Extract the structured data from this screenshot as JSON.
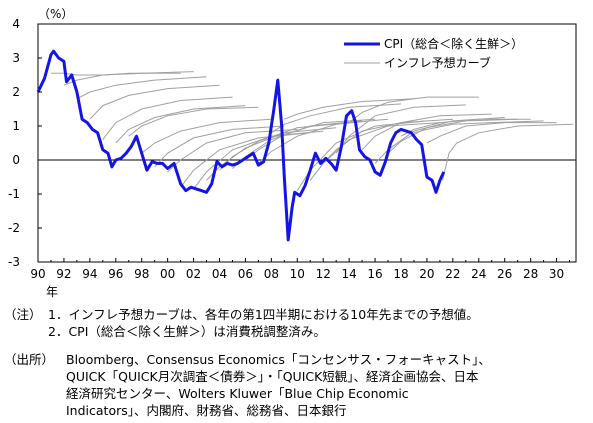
{
  "chart_data": {
    "type": "line",
    "y_unit_label": "（%）",
    "x_unit_label": "年",
    "ylim": [
      -3,
      4
    ],
    "y_ticks": [
      -3,
      -2,
      -1,
      0,
      1,
      2,
      3,
      4
    ],
    "y_tick_labels": [
      "-3",
      "-2",
      "-1",
      "0",
      "1",
      "2",
      "3",
      "4"
    ],
    "xlim": [
      1990,
      2031.5
    ],
    "x_ticks": [
      1990,
      1992,
      1994,
      1996,
      1998,
      2000,
      2002,
      2004,
      2006,
      2008,
      2010,
      2012,
      2014,
      2016,
      2018,
      2020,
      2022,
      2024,
      2026,
      2028,
      2030
    ],
    "x_tick_labels": [
      "90",
      "92",
      "94",
      "96",
      "98",
      "00",
      "02",
      "04",
      "06",
      "08",
      "10",
      "12",
      "14",
      "16",
      "18",
      "20",
      "22",
      "24",
      "26",
      "28",
      "30"
    ],
    "legend_position": "top-right",
    "series": [
      {
        "name": "CPI（総合＜除く生鮮＞）",
        "color": "#1414e6",
        "x": [
          1990.0,
          1990.5,
          1991.0,
          1991.2,
          1991.6,
          1992.0,
          1992.2,
          1992.6,
          1993.0,
          1993.4,
          1993.8,
          1994.2,
          1994.6,
          1995.0,
          1995.4,
          1995.7,
          1996.0,
          1996.4,
          1996.8,
          1997.2,
          1997.6,
          1998.0,
          1998.4,
          1998.8,
          1999.2,
          1999.6,
          2000.0,
          2000.5,
          2001.0,
          2001.4,
          2001.8,
          2002.2,
          2002.6,
          2003.0,
          2003.4,
          2003.8,
          2004.2,
          2004.6,
          2005.0,
          2005.4,
          2005.8,
          2006.2,
          2006.6,
          2007.0,
          2007.4,
          2007.8,
          2008.2,
          2008.5,
          2008.8,
          2009.0,
          2009.3,
          2009.6,
          2009.8,
          2010.2,
          2010.6,
          2011.0,
          2011.4,
          2011.8,
          2012.2,
          2012.6,
          2013.0,
          2013.4,
          2013.8,
          2014.2,
          2014.5,
          2014.8,
          2015.2,
          2015.6,
          2016.0,
          2016.4,
          2016.8,
          2017.2,
          2017.6,
          2018.0,
          2018.4,
          2018.8,
          2019.2,
          2019.6,
          2020.0,
          2020.4,
          2020.7,
          2021.0,
          2021.3
        ],
        "y": [
          2.0,
          2.4,
          3.1,
          3.2,
          3.0,
          2.9,
          2.3,
          2.5,
          2.0,
          1.2,
          1.1,
          0.9,
          0.8,
          0.3,
          0.2,
          -0.2,
          0.0,
          0.05,
          0.2,
          0.4,
          0.7,
          0.2,
          -0.3,
          -0.05,
          -0.1,
          -0.1,
          -0.25,
          -0.1,
          -0.7,
          -0.9,
          -0.8,
          -0.85,
          -0.9,
          -0.95,
          -0.7,
          -0.05,
          -0.2,
          -0.1,
          -0.15,
          -0.1,
          0.0,
          0.1,
          0.2,
          -0.15,
          -0.05,
          0.5,
          1.5,
          2.35,
          1.0,
          -0.5,
          -2.35,
          -1.4,
          -0.95,
          -1.05,
          -0.75,
          -0.3,
          0.2,
          -0.1,
          0.05,
          -0.1,
          -0.3,
          0.4,
          1.3,
          1.45,
          1.1,
          0.3,
          0.1,
          0.0,
          -0.35,
          -0.45,
          -0.05,
          0.5,
          0.8,
          0.9,
          0.85,
          0.8,
          0.6,
          0.45,
          -0.5,
          -0.6,
          -0.95,
          -0.6,
          -0.35
        ]
      },
      {
        "name": "インフレ予想カーブ",
        "color": "#a0a0a0",
        "curves": [
          {
            "x": [
              1991,
              1992,
              1993,
              1995,
              1997,
              1999,
              2001
            ],
            "y": [
              2.55,
              2.55,
              2.5,
              2.5,
              2.55,
              2.55,
              2.55
            ]
          },
          {
            "x": [
              1992,
              1993,
              1995,
              1998,
              2002
            ],
            "y": [
              2.2,
              2.35,
              2.5,
              2.55,
              2.6
            ]
          },
          {
            "x": [
              1993,
              1994,
              1996,
              1999,
              2003
            ],
            "y": [
              1.8,
              2.0,
              2.2,
              2.35,
              2.45
            ]
          },
          {
            "x": [
              1994,
              1995,
              1997,
              2000,
              2004
            ],
            "y": [
              1.2,
              1.6,
              1.9,
              2.1,
              2.2
            ]
          },
          {
            "x": [
              1995,
              1996,
              1998,
              2001,
              2005
            ],
            "y": [
              0.6,
              1.1,
              1.5,
              1.75,
              1.85
            ]
          },
          {
            "x": [
              1996,
              1997,
              1999,
              2002,
              2006
            ],
            "y": [
              0.5,
              0.9,
              1.25,
              1.5,
              1.6
            ]
          },
          {
            "x": [
              1997,
              1998,
              2000,
              2003,
              2007
            ],
            "y": [
              0.7,
              1.0,
              1.3,
              1.5,
              1.55
            ]
          },
          {
            "x": [
              1998,
              1999,
              2001,
              2004,
              2008
            ],
            "y": [
              0.2,
              0.5,
              0.85,
              1.1,
              1.2
            ]
          },
          {
            "x": [
              1999,
              2000,
              2002,
              2005,
              2009
            ],
            "y": [
              -0.2,
              0.2,
              0.65,
              0.9,
              1.0
            ]
          },
          {
            "x": [
              2000,
              2001,
              2003,
              2006,
              2010
            ],
            "y": [
              -0.35,
              0.0,
              0.5,
              0.8,
              0.9
            ]
          },
          {
            "x": [
              2001,
              2002,
              2004,
              2007,
              2011
            ],
            "y": [
              -0.8,
              -0.3,
              0.3,
              0.65,
              0.8
            ]
          },
          {
            "x": [
              2002,
              2003,
              2005,
              2008,
              2012
            ],
            "y": [
              -0.85,
              -0.35,
              0.3,
              0.7,
              0.85
            ]
          },
          {
            "x": [
              2003,
              2004,
              2006,
              2009,
              2013
            ],
            "y": [
              -0.6,
              -0.2,
              0.35,
              0.8,
              0.95
            ]
          },
          {
            "x": [
              2004,
              2005,
              2007,
              2010,
              2014
            ],
            "y": [
              -0.3,
              0.1,
              0.55,
              0.95,
              1.1
            ]
          },
          {
            "x": [
              2005,
              2006,
              2008,
              2011,
              2015
            ],
            "y": [
              -0.25,
              0.1,
              0.6,
              1.0,
              1.15
            ]
          },
          {
            "x": [
              2006,
              2007,
              2009,
              2012,
              2016
            ],
            "y": [
              0.0,
              0.3,
              0.75,
              1.1,
              1.2
            ]
          },
          {
            "x": [
              2007,
              2008,
              2010,
              2013,
              2017
            ],
            "y": [
              -0.1,
              0.25,
              0.7,
              1.05,
              1.2
            ]
          },
          {
            "x": [
              2008,
              2009,
              2011,
              2014,
              2018
            ],
            "y": [
              0.8,
              1.05,
              1.3,
              1.55,
              1.65
            ]
          },
          {
            "x": [
              2009,
              2010,
              2012,
              2015,
              2019
            ],
            "y": [
              1.2,
              1.35,
              1.55,
              1.72,
              1.8
            ]
          },
          {
            "x": [
              2010,
              2011,
              2013,
              2016,
              2020
            ],
            "y": [
              -0.9,
              -0.3,
              0.5,
              1.0,
              1.15
            ]
          },
          {
            "x": [
              2011,
              2012,
              2014,
              2017,
              2021
            ],
            "y": [
              -0.6,
              -0.1,
              0.6,
              1.0,
              1.1
            ]
          },
          {
            "x": [
              2012,
              2013,
              2015,
              2018,
              2022
            ],
            "y": [
              -0.1,
              0.3,
              0.85,
              1.1,
              1.2
            ]
          },
          {
            "x": [
              2013,
              2014,
              2016,
              2019,
              2023
            ],
            "y": [
              0.2,
              0.7,
              1.3,
              1.55,
              1.62
            ]
          },
          {
            "x": [
              2014,
              2015,
              2017,
              2020,
              2024
            ],
            "y": [
              1.1,
              1.4,
              1.7,
              1.85,
              1.85
            ]
          },
          {
            "x": [
              2015,
              2016,
              2018,
              2021,
              2025
            ],
            "y": [
              0.3,
              0.7,
              1.1,
              1.3,
              1.35
            ]
          },
          {
            "x": [
              2016,
              2017,
              2019,
              2022,
              2026
            ],
            "y": [
              -0.1,
              0.3,
              0.85,
              1.15,
              1.25
            ]
          },
          {
            "x": [
              2017,
              2018,
              2020,
              2023,
              2027
            ],
            "y": [
              0.2,
              0.55,
              0.95,
              1.15,
              1.2
            ]
          },
          {
            "x": [
              2018,
              2019,
              2021,
              2024,
              2028
            ],
            "y": [
              0.7,
              0.9,
              1.1,
              1.2,
              1.2
            ]
          },
          {
            "x": [
              2019,
              2020,
              2022,
              2025,
              2029
            ],
            "y": [
              0.8,
              0.9,
              1.05,
              1.1,
              1.15
            ]
          },
          {
            "x": [
              2020,
              2021,
              2023,
              2026,
              2030
            ],
            "y": [
              0.5,
              0.7,
              1.0,
              1.1,
              1.1
            ]
          },
          {
            "x": [
              2021.2,
              2021.7,
              2022.3,
              2024,
              2027,
              2031.3
            ],
            "y": [
              -0.6,
              0.2,
              0.5,
              0.8,
              1.0,
              1.05
            ]
          }
        ]
      }
    ]
  },
  "notes": {
    "chu_label": "（注）",
    "chu_1": "1．インフレ予想カーブは、各年の第1四半期における10年先までの予想値。",
    "chu_2": "2．CPI（総合＜除く生鮮＞）は消費税調整済み。",
    "shusho_label": "（出所）",
    "shusho_1": "Bloomberg、Consensus Economics「コンセンサス・フォーキャスト」、",
    "shusho_2": "QUICK「QUICK月次調査＜債券＞」・「QUICK短観」、経済企画協会、日本",
    "shusho_3": "経済研究センター、Wolters Kluwer「Blue Chip Economic",
    "shusho_4": "Indicators」、内閣府、財務省、総務省、日本銀行"
  }
}
